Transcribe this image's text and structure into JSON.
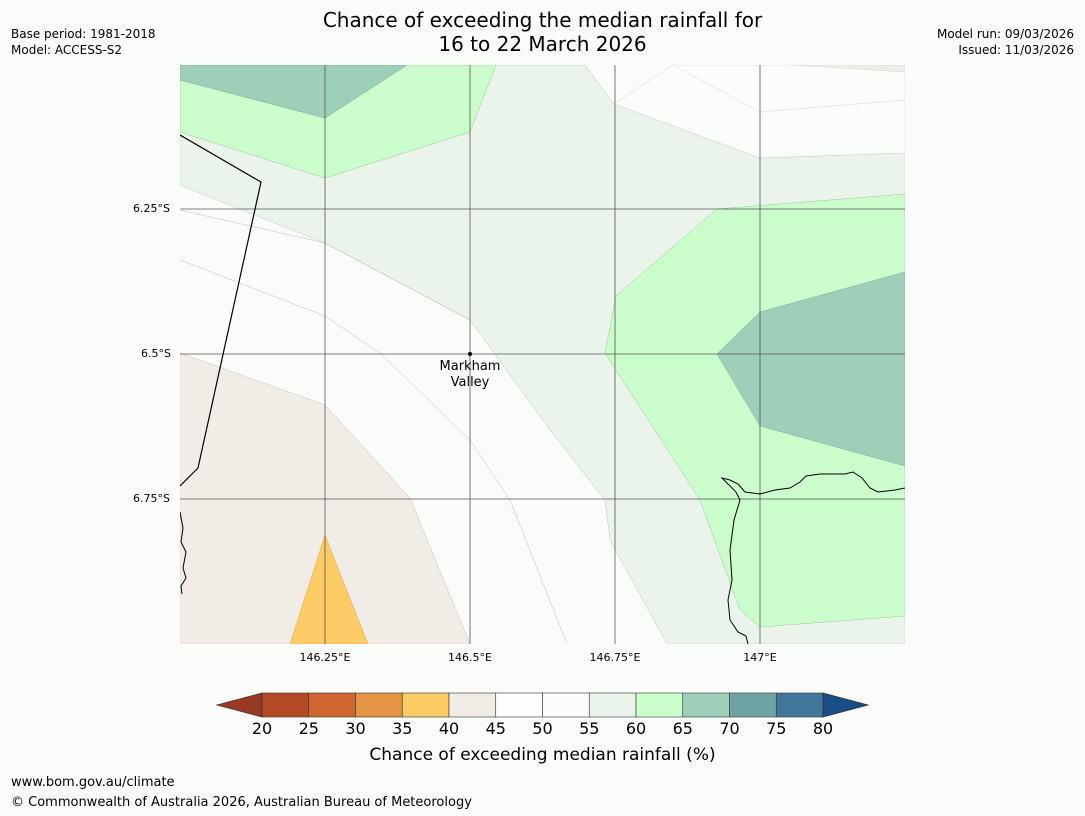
{
  "header": {
    "title_line1": "Chance of exceeding the median rainfall for",
    "title_line2": "16 to 22 March 2026",
    "base_period": "Base period: 1981-2018",
    "model": "Model: ACCESS-S2",
    "model_run": "Model run: 09/03/2026",
    "issued": "Issued: 11/03/2026"
  },
  "map": {
    "lat_labels": [
      "6.25°S",
      "6.5°S",
      "6.75°S"
    ],
    "lon_labels": [
      "146.25°E",
      "146.5°E",
      "146.75°E",
      "147°E"
    ],
    "place": {
      "name_line1": "Markham",
      "name_line2": "Valley"
    }
  },
  "colorbar": {
    "ticks": [
      "20",
      "25",
      "30",
      "35",
      "40",
      "45",
      "50",
      "55",
      "60",
      "65",
      "70",
      "75",
      "80"
    ],
    "colors": {
      "below": "#9b3a24",
      "20-25": "#b54a26",
      "25-30": "#cf6631",
      "30-35": "#e39444",
      "35-40": "#fecc66",
      "40-45": "#f2ece6",
      "45-50": "#fdfdfc",
      "50-55": "#fcfdfb",
      "55-60": "#eaf4ea",
      "60-65": "#ccfdcc",
      "65-70": "#9ecfb9",
      "70-75": "#70a4a4",
      "75-80": "#41779b",
      "above": "#1a4e87"
    },
    "label": "Chance of exceeding median rainfall (%)"
  },
  "footer": {
    "url": "www.bom.gov.au/climate",
    "copyright": "© Commonwealth of Australia 2026, Australian Bureau of Meteorology"
  }
}
